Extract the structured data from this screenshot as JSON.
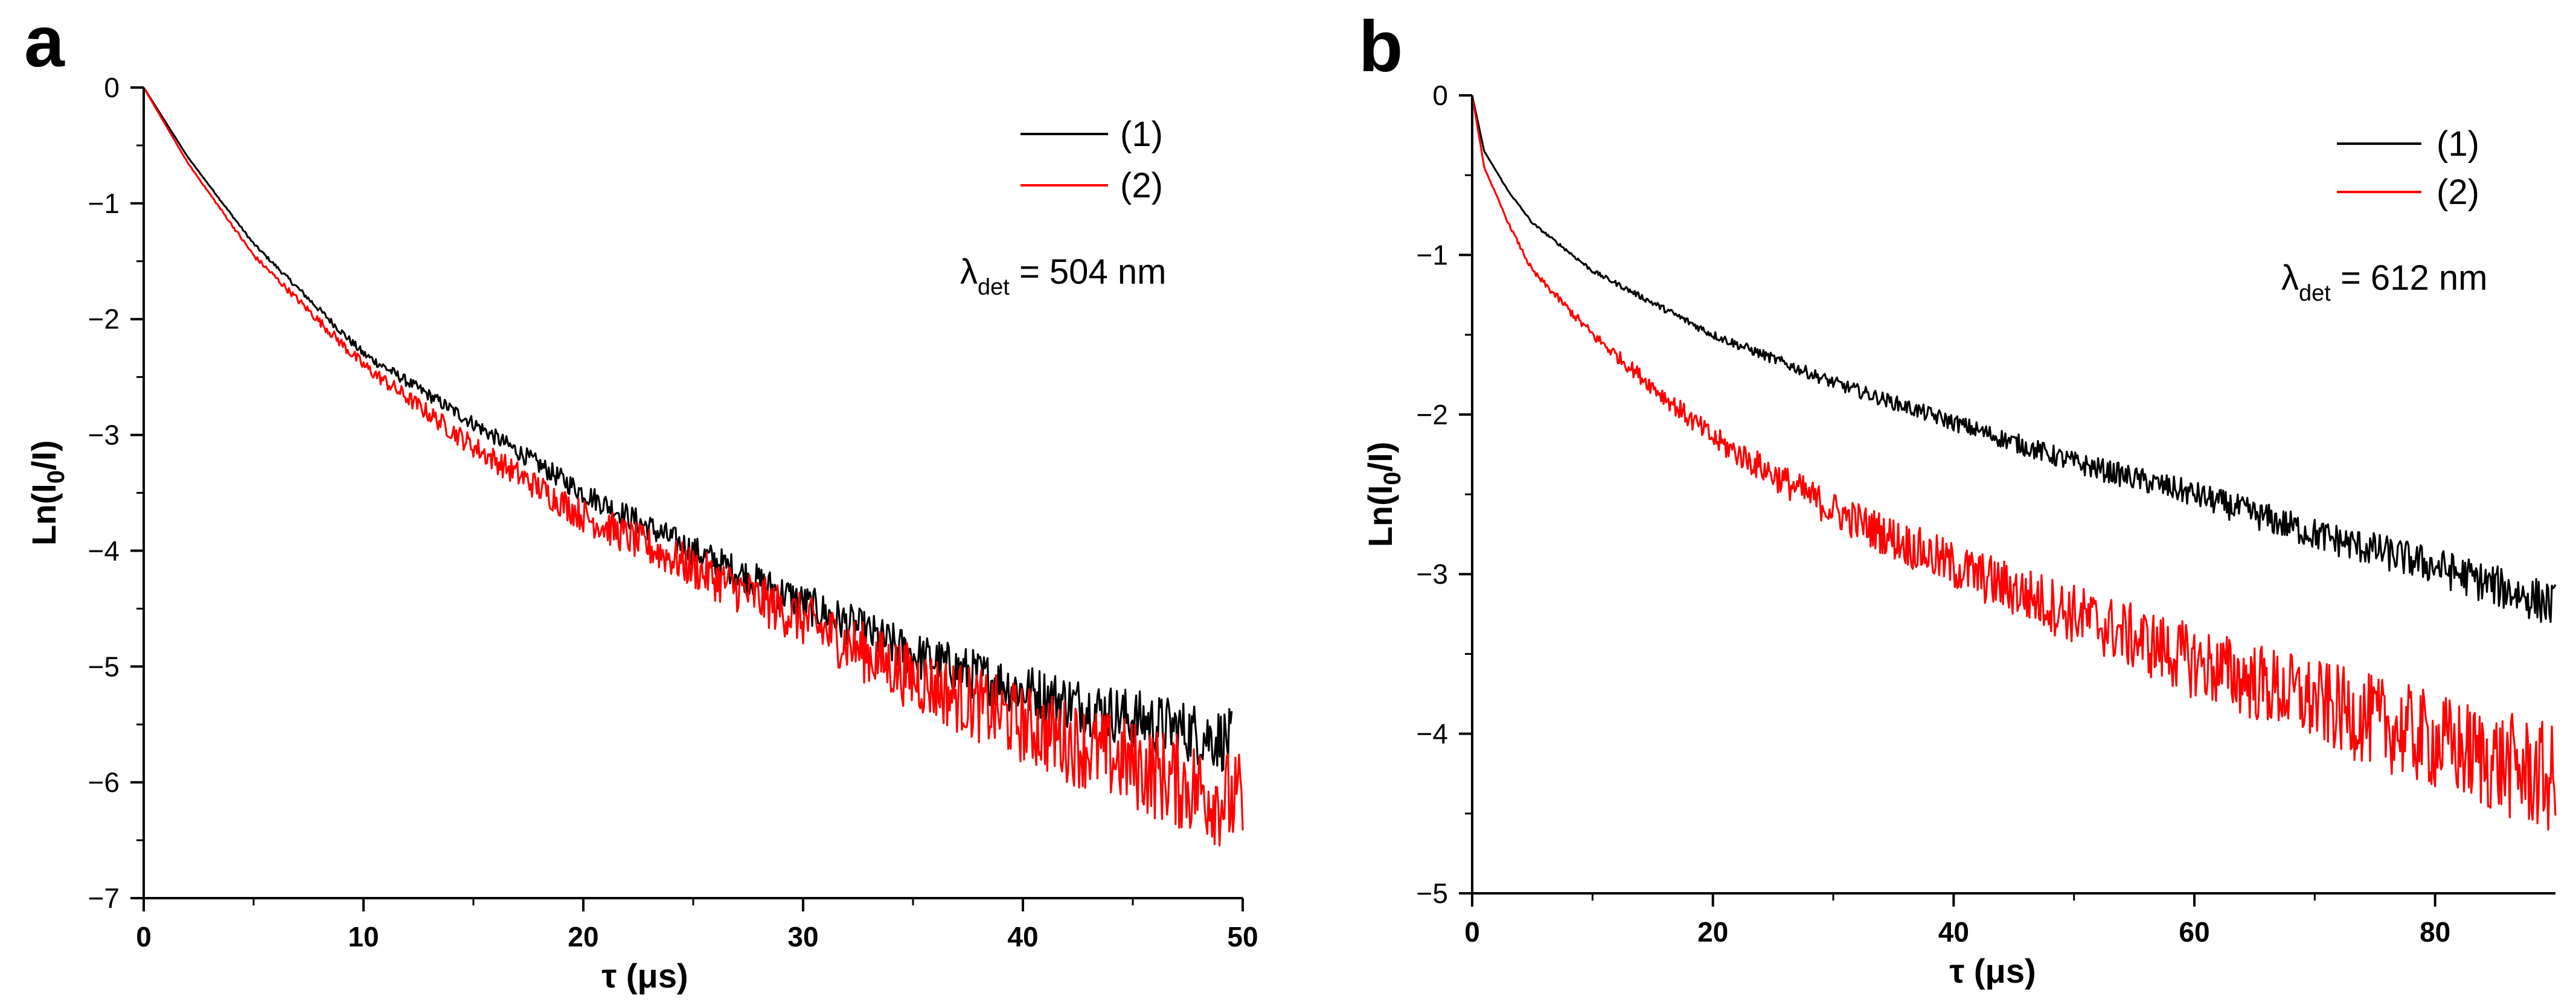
{
  "chart_data": [
    {
      "panel": "a",
      "type": "line",
      "xlabel": "τ (μs)",
      "ylabel": "Ln(I0/I)",
      "xlim": [
        0,
        50
      ],
      "ylim": [
        -7,
        0
      ],
      "xticks": [
        "0",
        "10",
        "20",
        "30",
        "40",
        "50"
      ],
      "yticks": [
        "0",
        "−1",
        "−2",
        "−3",
        "−4",
        "−5",
        "−6",
        "−7"
      ],
      "legend": [
        "(1)",
        "(2)"
      ],
      "legend_position": "top-right",
      "annotation": {
        "symbol": "λ",
        "subscript": "det",
        "text": " = 504 nm"
      },
      "series": [
        {
          "name": "(1)",
          "color": "#000000",
          "x": [
            0,
            2,
            5,
            10,
            15,
            20,
            25,
            30,
            35,
            40,
            45,
            49.5
          ],
          "y": [
            0,
            -0.6,
            -1.35,
            -2.3,
            -2.9,
            -3.5,
            -4.0,
            -4.45,
            -4.9,
            -5.2,
            -5.45,
            -5.65
          ]
        },
        {
          "name": "(2)",
          "color": "#ff0000",
          "x": [
            0,
            2,
            5,
            10,
            15,
            20,
            25,
            30,
            35,
            40,
            45,
            50
          ],
          "y": [
            0,
            -0.65,
            -1.45,
            -2.4,
            -3.1,
            -3.7,
            -4.15,
            -4.6,
            -5.1,
            -5.5,
            -5.85,
            -6.2
          ]
        }
      ]
    },
    {
      "panel": "b",
      "type": "line",
      "xlabel": "τ (μs)",
      "ylabel": "Ln(I0/I)",
      "xlim": [
        0,
        90
      ],
      "ylim": [
        -5,
        0
      ],
      "xticks": [
        "0",
        "20",
        "40",
        "60",
        "80"
      ],
      "yticks": [
        "0",
        "−1",
        "−2",
        "−3",
        "−4",
        "−5"
      ],
      "legend": [
        "(1)",
        "(2)"
      ],
      "legend_position": "top-right",
      "annotation": {
        "symbol": "λ",
        "subscript": "det",
        "text": " = 612 nm"
      },
      "series": [
        {
          "name": "(1)",
          "color": "#000000",
          "x": [
            0,
            1,
            3,
            5,
            10,
            20,
            30,
            40,
            50,
            60,
            70,
            80,
            90
          ],
          "y": [
            0,
            -0.35,
            -0.6,
            -0.8,
            -1.1,
            -1.5,
            -1.8,
            -2.05,
            -2.3,
            -2.5,
            -2.75,
            -2.95,
            -3.2
          ]
        },
        {
          "name": "(2)",
          "color": "#ff0000",
          "x": [
            0,
            1,
            3,
            5,
            10,
            20,
            30,
            40,
            50,
            60,
            70,
            80,
            90
          ],
          "y": [
            0,
            -0.45,
            -0.8,
            -1.1,
            -1.5,
            -2.15,
            -2.6,
            -2.95,
            -3.25,
            -3.55,
            -3.8,
            -4.05,
            -4.3
          ]
        }
      ]
    }
  ]
}
